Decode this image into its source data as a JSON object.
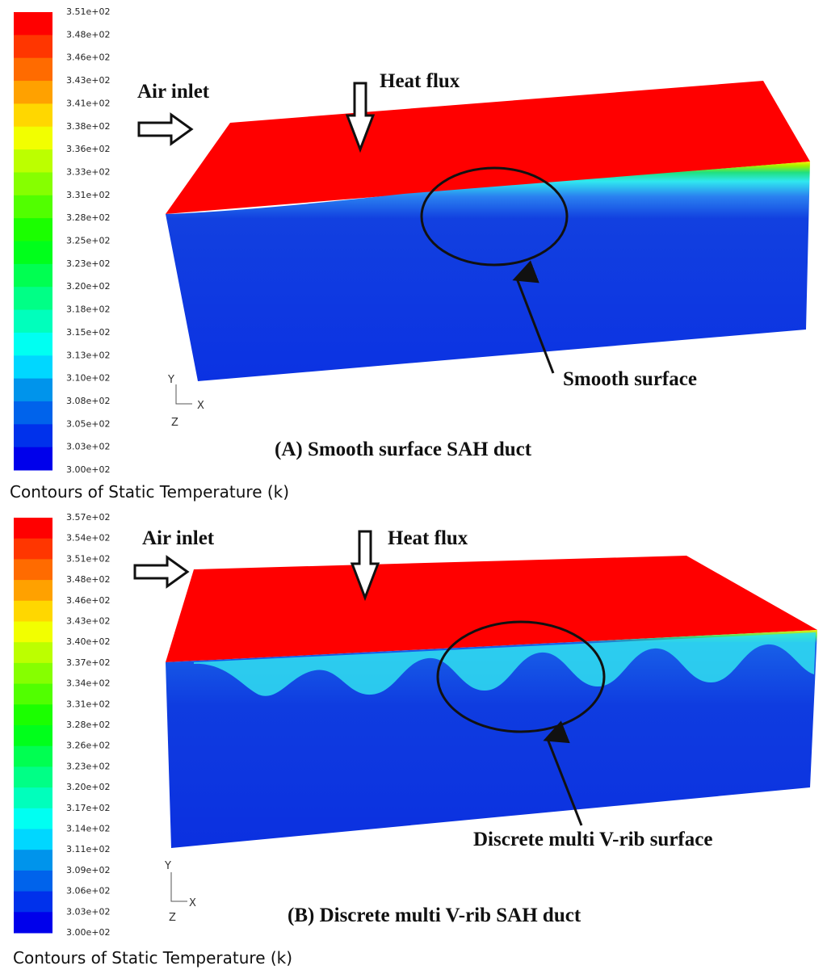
{
  "panels": [
    {
      "legend_labels": [
        "3.51e+02",
        "3.48e+02",
        "3.46e+02",
        "3.43e+02",
        "3.41e+02",
        "3.38e+02",
        "3.36e+02",
        "3.33e+02",
        "3.31e+02",
        "3.28e+02",
        "3.25e+02",
        "3.23e+02",
        "3.20e+02",
        "3.18e+02",
        "3.15e+02",
        "3.13e+02",
        "3.10e+02",
        "3.08e+02",
        "3.05e+02",
        "3.03e+02",
        "3.00e+02"
      ],
      "inlet": "Air inlet",
      "flux": "Heat flux",
      "surface": "Smooth surface",
      "axes": {
        "y": "Y",
        "x": "X",
        "z": "Z"
      },
      "caption": "(A) Smooth surface SAH duct",
      "legend_title": "Contours of Static Temperature (k)"
    },
    {
      "legend_labels": [
        "3.57e+02",
        "3.54e+02",
        "3.51e+02",
        "3.48e+02",
        "3.46e+02",
        "3.43e+02",
        "3.40e+02",
        "3.37e+02",
        "3.34e+02",
        "3.31e+02",
        "3.28e+02",
        "3.26e+02",
        "3.23e+02",
        "3.20e+02",
        "3.17e+02",
        "3.14e+02",
        "3.11e+02",
        "3.09e+02",
        "3.06e+02",
        "3.03e+02",
        "3.00e+02"
      ],
      "inlet": "Air inlet",
      "flux": "Heat flux",
      "surface": "Discrete multi V-rib surface",
      "axes": {
        "y": "Y",
        "x": "X",
        "z": "Z"
      },
      "caption": "(B) Discrete multi V-rib SAH duct",
      "legend_title": "Contours of Static Temperature (k)"
    }
  ]
}
